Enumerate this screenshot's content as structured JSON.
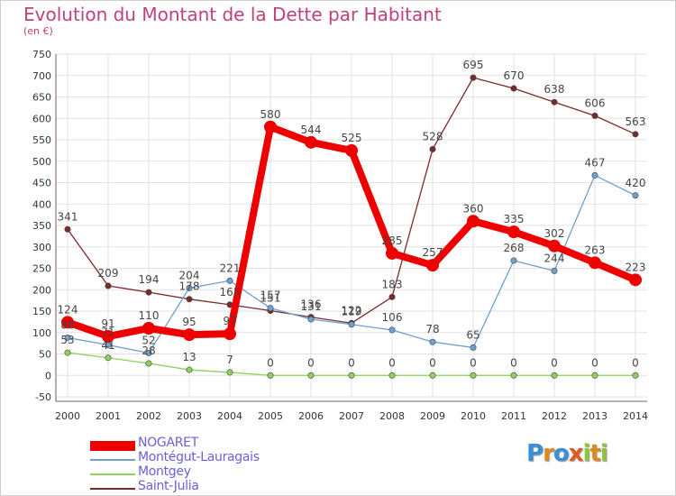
{
  "header": {
    "title": "Evolution du Montant de la Dette par Habitant",
    "subtitle": "(en €)"
  },
  "chart_data": {
    "type": "line",
    "title": "Evolution du Montant de la Dette par Habitant",
    "ylabel": "(en €)",
    "xlabel": "",
    "ylim": [
      -50,
      750
    ],
    "yticks": [
      -50,
      0,
      50,
      100,
      150,
      200,
      250,
      300,
      350,
      400,
      450,
      500,
      550,
      600,
      650,
      700,
      750
    ],
    "grid": true,
    "categories": [
      "2000",
      "2001",
      "2002",
      "2003",
      "2004",
      "2005",
      "2006",
      "2007",
      "2008",
      "2009",
      "2010",
      "2011",
      "2012",
      "2013",
      "2014"
    ],
    "series": [
      {
        "name": "NOGARET",
        "color": "#ee0000",
        "values": [
          124,
          91,
          110,
          95,
          97,
          580,
          544,
          525,
          285,
          257,
          360,
          335,
          302,
          263,
          223
        ]
      },
      {
        "name": "Montégut-Lauragais",
        "color": "#6fa0cf",
        "values": [
          88,
          71,
          52,
          204,
          221,
          157,
          131,
          119,
          106,
          78,
          65,
          268,
          244,
          467,
          420
        ]
      },
      {
        "name": "Montgey",
        "color": "#8fd15a",
        "values": [
          53,
          41,
          28,
          13,
          7,
          0,
          0,
          0,
          0,
          0,
          0,
          0,
          0,
          0,
          0
        ]
      },
      {
        "name": "Saint-Julia",
        "color": "#7a2a2a",
        "values": [
          341,
          209,
          194,
          178,
          165,
          151,
          136,
          122,
          183,
          528,
          695,
          670,
          638,
          606,
          563
        ]
      }
    ],
    "legend_position": "bottom-left"
  },
  "logo": {
    "letters": [
      "P",
      "r",
      "o",
      "x",
      "i",
      "t",
      "i"
    ],
    "colors": [
      "#3a8fd6",
      "#e08a1e",
      "#3a8fd6",
      "#e05a1e",
      "#8cc63f",
      "#e08a1e",
      "#8cc63f"
    ]
  }
}
